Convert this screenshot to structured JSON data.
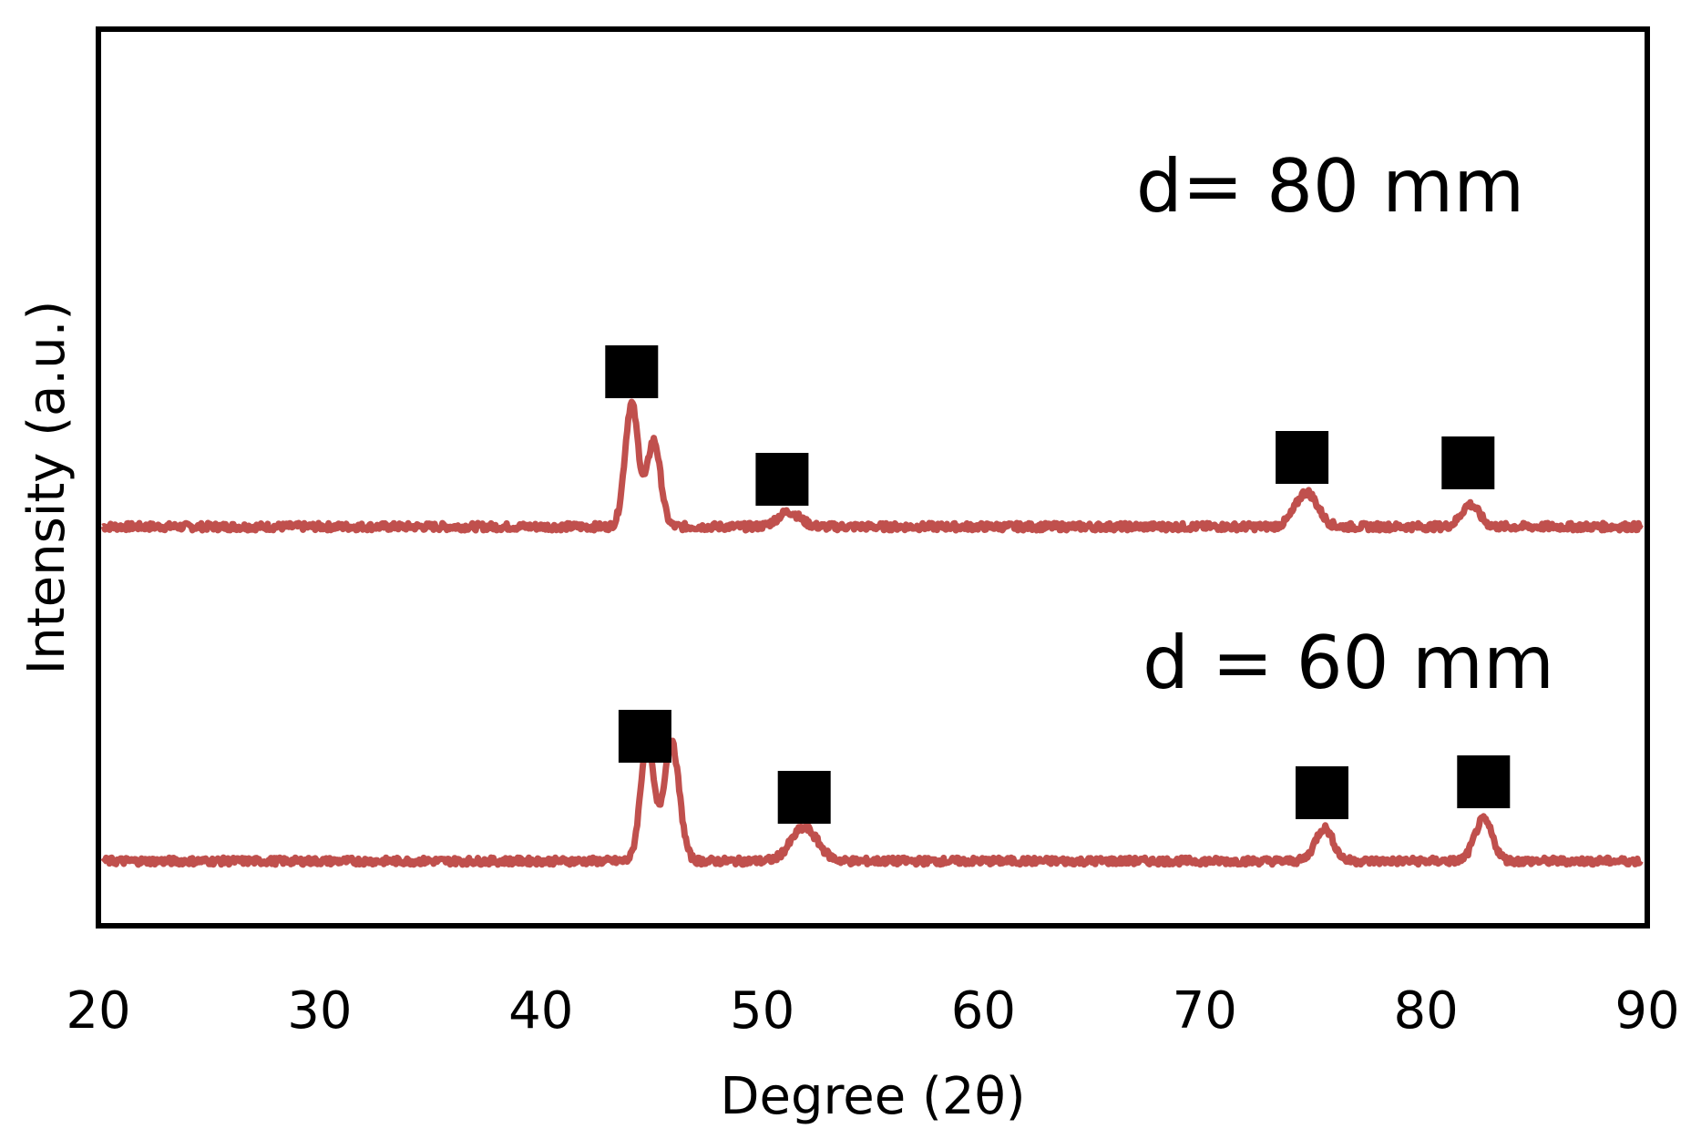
{
  "chart_data": {
    "type": "line",
    "xlabel": "Degree (2θ)",
    "ylabel": "Intensity (a.u.)",
    "xlim": [
      20,
      90
    ],
    "xticks": [
      20,
      30,
      40,
      50,
      60,
      70,
      80,
      90
    ],
    "grid": false,
    "y_ticks_shown": false,
    "colors": {
      "series": "#c0504d",
      "marker": "#000000",
      "frame": "#000000"
    },
    "series": [
      {
        "name": "d= 80 mm",
        "peaks": [
          {
            "x": 44.1,
            "height": 1.0,
            "width": 0.3
          },
          {
            "x": 45.1,
            "height": 0.7,
            "width": 0.3
          },
          {
            "x": 51.2,
            "height": 0.12,
            "width": 0.5
          },
          {
            "x": 74.6,
            "height": 0.28,
            "width": 0.5
          },
          {
            "x": 82.0,
            "height": 0.18,
            "width": 0.4
          }
        ],
        "markers": [
          44.1,
          50.9,
          74.4,
          81.9
        ]
      },
      {
        "name": "d = 60 mm",
        "peaks": [
          {
            "x": 44.8,
            "height": 1.0,
            "width": 0.3
          },
          {
            "x": 45.9,
            "height": 1.0,
            "width": 0.35
          },
          {
            "x": 51.9,
            "height": 0.28,
            "width": 0.6
          },
          {
            "x": 75.4,
            "height": 0.28,
            "width": 0.4
          },
          {
            "x": 82.6,
            "height": 0.35,
            "width": 0.4
          }
        ],
        "markers": [
          44.7,
          51.9,
          75.3,
          82.6
        ]
      }
    ]
  }
}
